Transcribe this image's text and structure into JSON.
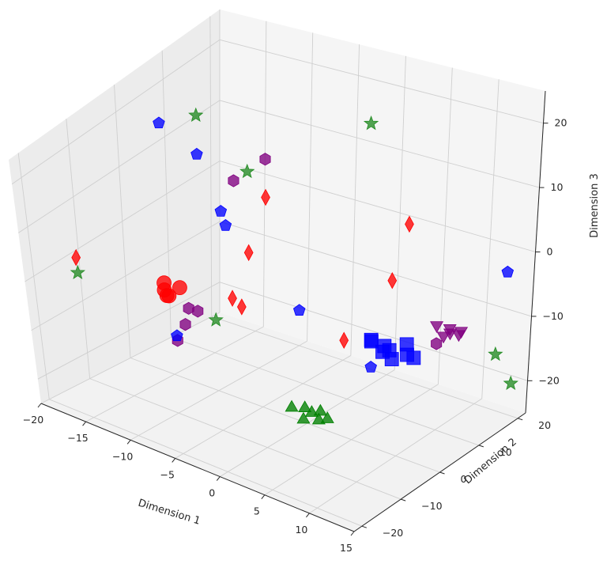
{
  "chart_data": {
    "type": "scatter",
    "projection": "3d",
    "title": "",
    "xlabel": "Dimension 1",
    "ylabel": "Dimension 2",
    "zlabel": "Dimension 3",
    "xlim": [
      -20,
      15
    ],
    "ylim": [
      -22,
      22
    ],
    "zlim": [
      -25,
      25
    ],
    "xticks": [
      -20,
      -15,
      -10,
      -5,
      0,
      5,
      10,
      15
    ],
    "yticks": [
      -20,
      -10,
      0,
      10,
      20
    ],
    "zticks": [
      -20,
      -10,
      0,
      10,
      20
    ],
    "grid": true,
    "legend": false,
    "series": [
      {
        "marker": "circle",
        "color": "#ff0000",
        "points": [
          [
            -9,
            -13,
            0
          ],
          [
            -9.5,
            -12,
            0.5
          ],
          [
            -8,
            -14,
            0
          ],
          [
            -7.5,
            -12.5,
            1
          ],
          [
            -8.5,
            -13.5,
            -0.5
          ]
        ]
      },
      {
        "marker": "triangle-up",
        "color": "#008000",
        "points": [
          [
            5,
            -14,
            -13
          ],
          [
            6,
            -13,
            -13
          ],
          [
            7,
            -13.5,
            -13
          ],
          [
            7.5,
            -12.5,
            -13
          ],
          [
            8,
            -14,
            -13.5
          ],
          [
            6.5,
            -14.5,
            -14
          ],
          [
            8.5,
            -13,
            -13.5
          ]
        ]
      },
      {
        "marker": "square",
        "color": "#0000ff",
        "points": [
          [
            6,
            3,
            -9
          ],
          [
            6.5,
            2,
            -8.5
          ],
          [
            7.5,
            2.5,
            -10
          ],
          [
            8.5,
            2,
            -9
          ],
          [
            9,
            1.5,
            -10
          ],
          [
            10,
            3,
            -9.5
          ],
          [
            10.5,
            3.5,
            -10
          ],
          [
            9.5,
            4,
            -8.5
          ],
          [
            7,
            4,
            -10
          ]
        ]
      },
      {
        "marker": "triangle-down",
        "color": "#800080",
        "points": [
          [
            10,
            10,
            -8
          ],
          [
            11,
            11,
            -8.5
          ],
          [
            11.5,
            10,
            -8.5
          ],
          [
            12,
            11,
            -9
          ],
          [
            12.5,
            10.5,
            -8
          ],
          [
            11,
            9.5,
            -9
          ]
        ]
      },
      {
        "marker": "pentagon",
        "color": "#0000ff",
        "points": [
          [
            -18,
            5,
            16
          ],
          [
            -15.5,
            8,
            10
          ],
          [
            -12.5,
            7,
            2
          ],
          [
            -10.5,
            4,
            2
          ],
          [
            -8,
            -13,
            -8
          ],
          [
            -2,
            3,
            -8
          ],
          [
            5,
            5,
            -15
          ],
          [
            13,
            20,
            -3
          ]
        ]
      },
      {
        "marker": "hexagon",
        "color": "#800080",
        "points": [
          [
            -11,
            7,
            8
          ],
          [
            -9,
            10,
            11
          ],
          [
            -9,
            -8,
            -6
          ],
          [
            -10,
            -7,
            -10
          ],
          [
            -9,
            -6,
            -7.5
          ],
          [
            -10,
            -9,
            -12
          ],
          [
            10,
            10,
            -11
          ]
        ]
      },
      {
        "marker": "diamond",
        "color": "#ff0000",
        "points": [
          [
            -16,
            -18,
            5
          ],
          [
            -8,
            8,
            6
          ],
          [
            -7,
            2,
            0
          ],
          [
            -5,
            -6,
            -3
          ],
          [
            -4,
            -6,
            -4
          ],
          [
            2,
            20,
            0
          ],
          [
            5,
            10,
            -3
          ],
          [
            2,
            5,
            -12
          ]
        ]
      },
      {
        "marker": "star",
        "color": "#228b22",
        "points": [
          [
            -16,
            -18,
            2
          ],
          [
            -16,
            9,
            16
          ],
          [
            -11,
            10,
            8
          ],
          [
            -7,
            -6,
            -8
          ],
          [
            0,
            15,
            18
          ],
          [
            13,
            18,
            -15
          ],
          [
            14,
            20,
            -20
          ]
        ]
      }
    ]
  }
}
